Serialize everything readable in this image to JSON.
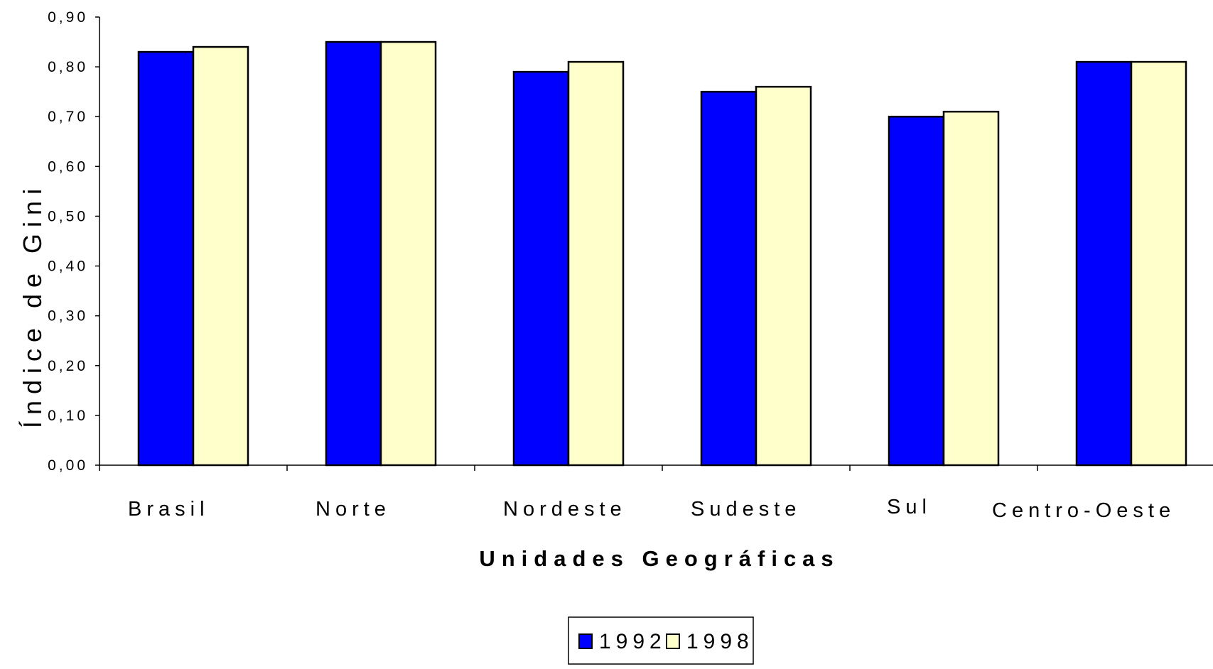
{
  "colors": {
    "series_1992": "#0000ff",
    "series_1998": "#ffffcc",
    "axis": "#000000"
  },
  "chart_data": {
    "type": "bar",
    "title": "",
    "xlabel": "Unidades Geográficas",
    "ylabel": "Índice de Gini",
    "categories": [
      "Brasil",
      "Norte",
      "Nordeste",
      "Sudeste",
      "Sul",
      "Centro-Oeste"
    ],
    "series": [
      {
        "name": "1992",
        "values": [
          0.83,
          0.85,
          0.79,
          0.75,
          0.7,
          0.81
        ]
      },
      {
        "name": "1998",
        "values": [
          0.84,
          0.85,
          0.81,
          0.76,
          0.71,
          0.81
        ]
      }
    ],
    "ylim": [
      0,
      0.9
    ],
    "yticks": [
      "0,00",
      "0,10",
      "0,20",
      "0,30",
      "0,40",
      "0,50",
      "0,60",
      "0,70",
      "0,80",
      "0,90"
    ],
    "grid": false,
    "legend_position": "bottom-center"
  }
}
